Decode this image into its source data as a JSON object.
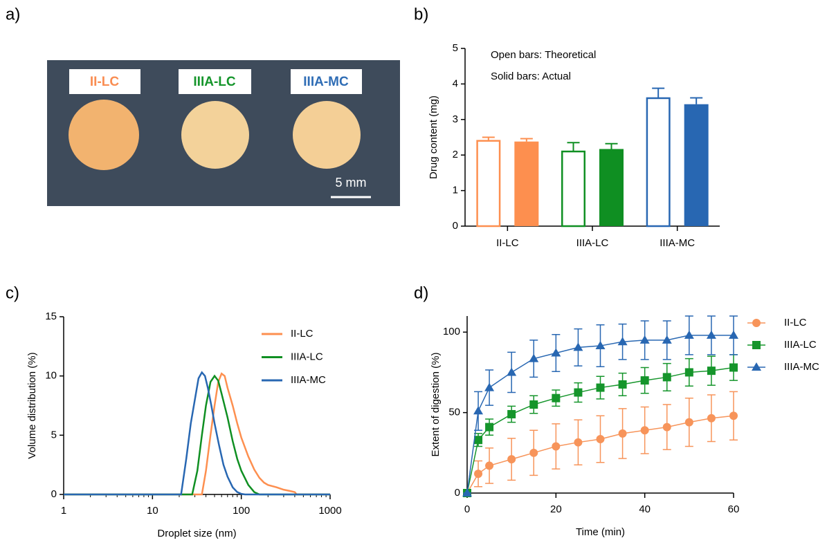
{
  "panel_labels": [
    "a)",
    "b)",
    "c)",
    "d)"
  ],
  "photo": {
    "labels": [
      {
        "text": "II-LC",
        "color": "#f98d52"
      },
      {
        "text": "IIIA-LC",
        "color": "#15952b"
      },
      {
        "text": "IIIA-MC",
        "color": "#2f6db5"
      }
    ],
    "scale_bar": "5 mm"
  },
  "chart_data": [
    {
      "type": "bar",
      "y_label": "Drug content (mg)",
      "annotations": [
        "Open bars: Theoretical",
        "Solid bars: Actual"
      ],
      "categories": [
        "II-LC",
        "IIIA-LC",
        "IIIA-MC"
      ],
      "category_colors": [
        "#fd8f4f",
        "#0f8f22",
        "#2867b2"
      ],
      "series": [
        {
          "style": "open",
          "values": [
            2.4,
            2.1,
            3.6
          ],
          "errors": [
            0.1,
            0.25,
            0.28
          ]
        },
        {
          "style": "solid",
          "values": [
            2.38,
            2.17,
            3.43
          ],
          "errors": [
            0.08,
            0.15,
            0.18
          ]
        }
      ],
      "ylim": [
        0,
        5
      ],
      "yticks": [
        0,
        1,
        2,
        3,
        4,
        5
      ]
    },
    {
      "type": "line",
      "x_label": "Droplet size (nm)",
      "y_label": "Volume distribution (%)",
      "xscale": "log",
      "xlim": [
        1,
        1000
      ],
      "xticks": [
        1,
        10,
        100,
        1000
      ],
      "ylim": [
        0,
        15
      ],
      "yticks": [
        0,
        5,
        10,
        15
      ],
      "series": [
        {
          "name": "II-LC",
          "color": "#fd8f4f",
          "x": [
            1,
            36,
            40,
            45,
            50,
            55,
            60,
            65,
            70,
            80,
            90,
            100,
            120,
            140,
            160,
            180,
            200,
            250,
            300,
            350,
            400,
            420,
            1000
          ],
          "values": [
            0,
            0,
            2,
            5,
            7.5,
            9.5,
            10.2,
            10,
            9,
            7.5,
            6,
            4.8,
            3.2,
            2.1,
            1.4,
            1,
            0.8,
            0.6,
            0.4,
            0.3,
            0.2,
            0,
            0
          ]
        },
        {
          "name": "IIIA-LC",
          "color": "#0f8f22",
          "x": [
            1,
            28,
            32,
            36,
            40,
            45,
            50,
            55,
            60,
            70,
            80,
            90,
            100,
            120,
            140,
            160,
            1000
          ],
          "values": [
            0,
            0,
            2,
            5,
            7.5,
            9.5,
            10,
            9.6,
            8.5,
            6.5,
            4.5,
            3,
            2,
            0.8,
            0.2,
            0,
            0
          ]
        },
        {
          "name": "IIIA-MC",
          "color": "#2867b2",
          "x": [
            1,
            21,
            24,
            27,
            30,
            33,
            36,
            39,
            42,
            46,
            50,
            56,
            63,
            70,
            80,
            90,
            100,
            110,
            1000
          ],
          "values": [
            0,
            0,
            3,
            6,
            8,
            9.8,
            10.3,
            10,
            9,
            7.5,
            6,
            4.2,
            2.5,
            1.5,
            0.6,
            0.2,
            0.05,
            0,
            0
          ]
        }
      ]
    },
    {
      "type": "errorline",
      "x_label": "Time (min)",
      "y_label": "Extent of digestion (%)",
      "xlim": [
        0,
        60
      ],
      "xticks": [
        0,
        20,
        40,
        60
      ],
      "ylim": [
        0,
        110
      ],
      "yticks": [
        0,
        50,
        100
      ],
      "x": [
        0,
        2.5,
        5,
        10,
        15,
        20,
        25,
        30,
        35,
        40,
        45,
        50,
        55,
        60
      ],
      "series": [
        {
          "name": "II-LC",
          "color": "#f7945a",
          "marker": "circle",
          "values": [
            0,
            12,
            17,
            21,
            25,
            29,
            31.5,
            33.5,
            37,
            39,
            41,
            44,
            46.5,
            48
          ],
          "errors": [
            0,
            8,
            11,
            13,
            14,
            14,
            14,
            14.5,
            15.5,
            14.5,
            14,
            15,
            14.5,
            15
          ]
        },
        {
          "name": "IIIA-LC",
          "color": "#15952b",
          "marker": "square",
          "values": [
            0,
            33,
            41,
            49,
            55,
            59,
            62.5,
            65.5,
            67.5,
            70,
            72,
            75,
            76,
            78
          ],
          "errors": [
            0,
            4,
            5,
            5,
            5.5,
            5,
            6,
            7,
            7,
            8,
            8.5,
            8.5,
            9,
            8
          ]
        },
        {
          "name": "IIIA-MC",
          "color": "#2867b2",
          "marker": "triangle",
          "values": [
            0,
            51,
            65.5,
            75,
            83.5,
            87,
            90.5,
            91.5,
            94,
            95,
            95,
            98,
            98,
            98
          ],
          "errors": [
            0,
            12,
            11,
            12.5,
            11.5,
            11.5,
            11.5,
            13,
            11,
            12,
            12,
            12,
            12,
            12
          ]
        }
      ]
    }
  ]
}
